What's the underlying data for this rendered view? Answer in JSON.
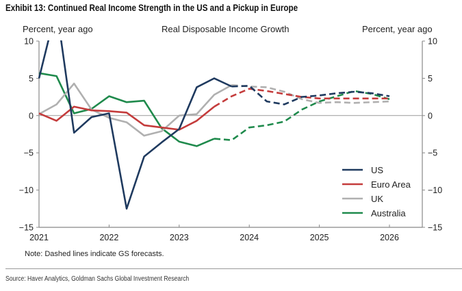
{
  "exhibit_title": "Exhibit 13: Continued Real Income Strength in the US and a Pickup in Europe",
  "note": "Note: Dashed lines indicate GS forecasts.",
  "source": "Source: Haver Analytics, Goldman Sachs Global Investment Research",
  "chart_data": {
    "type": "line",
    "title": "Real Disposable Income Growth",
    "ylabel_left": "Percent, year ago",
    "ylabel_right": "Percent, year ago",
    "xlabel": "",
    "ylim": [
      -15,
      10
    ],
    "yticks": [
      10,
      5,
      0,
      -5,
      -10,
      -15
    ],
    "ytick_labels": [
      "10",
      "5",
      "0",
      "−5",
      "−10",
      "−15"
    ],
    "xlim": [
      2021.0,
      2026.5
    ],
    "xticks": [
      2021,
      2022,
      2023,
      2024,
      2025,
      2026
    ],
    "xtick_labels": [
      "2021",
      "2022",
      "2023",
      "2024",
      "2025",
      "2026"
    ],
    "grid": false,
    "zero_line": true,
    "legend_position": "bottom-right",
    "x": [
      2021.0,
      2021.25,
      2021.5,
      2021.75,
      2022.0,
      2022.25,
      2022.5,
      2022.75,
      2023.0,
      2023.25,
      2023.5,
      2023.75,
      2024.0,
      2024.25,
      2024.5,
      2024.75,
      2025.0,
      2025.25,
      2025.5,
      2025.75,
      2026.0
    ],
    "series": [
      {
        "name": "US",
        "color": "#1f3a5f",
        "values": [
          5.0,
          14.5,
          -2.3,
          -0.2,
          0.3,
          -12.5,
          -5.5,
          -3.6,
          -1.8,
          3.8,
          5.0,
          3.9,
          4.0,
          1.9,
          1.5,
          2.5,
          2.7,
          3.0,
          3.2,
          3.0,
          2.6
        ],
        "forecast_start_index": 11
      },
      {
        "name": "Euro Area",
        "color": "#c43c3c",
        "values": [
          0.3,
          -0.7,
          1.2,
          0.7,
          0.6,
          0.4,
          -1.3,
          -1.6,
          -1.9,
          -0.7,
          1.2,
          2.6,
          3.6,
          3.3,
          2.9,
          2.5,
          2.3,
          2.3,
          2.3,
          2.3,
          2.3
        ],
        "forecast_start_index": 10
      },
      {
        "name": "UK",
        "color": "#b0b0b0",
        "values": [
          0.2,
          1.5,
          4.3,
          0.8,
          -0.3,
          -0.9,
          -2.7,
          -2.1,
          0.0,
          0.2,
          2.8,
          4.1,
          3.9,
          3.8,
          3.2,
          2.2,
          1.7,
          1.8,
          1.7,
          1.8,
          1.9
        ],
        "forecast_start_index": 11
      },
      {
        "name": "Australia",
        "color": "#1f8a4c",
        "values": [
          5.7,
          5.3,
          0.3,
          0.9,
          2.6,
          1.8,
          2.0,
          -1.7,
          -3.5,
          -4.1,
          -3.1,
          -3.3,
          -1.6,
          -1.3,
          -0.8,
          0.8,
          1.9,
          2.6,
          3.3,
          2.9,
          2.2
        ],
        "forecast_start_index": 10
      }
    ]
  }
}
